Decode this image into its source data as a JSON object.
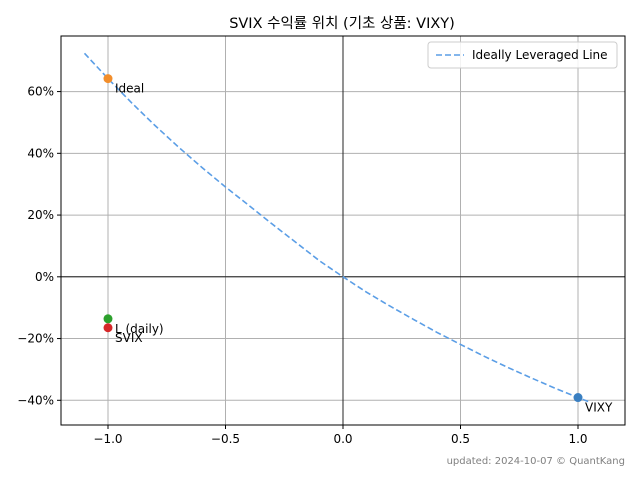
{
  "chart_data": {
    "type": "scatter",
    "title": "SVIX 수익률 위치 (기초 상품: VIXY)",
    "xlabel": "",
    "ylabel": "",
    "xlim": [
      -1.2,
      1.2
    ],
    "ylim": [
      -0.48,
      0.78
    ],
    "x_ticks": [
      -1.0,
      -0.5,
      0.0,
      0.5,
      1.0
    ],
    "x_tick_labels": [
      "−1.0",
      "−0.5",
      "0.0",
      "0.5",
      "1.0"
    ],
    "y_ticks": [
      -0.4,
      -0.2,
      0.0,
      0.2,
      0.4,
      0.6
    ],
    "y_tick_labels": [
      "−40%",
      "−20%",
      "0%",
      "20%",
      "40%",
      "60%"
    ],
    "grid": true,
    "legend_position": "top-right",
    "line_series": {
      "name": "Ideally Leveraged Line",
      "style": "dashed",
      "color": "#5b9ee6",
      "x": [
        -1.1,
        -1.0,
        -0.9,
        -0.8,
        -0.7,
        -0.6,
        -0.5,
        -0.4,
        -0.3,
        -0.2,
        -0.1,
        0.0,
        0.1,
        0.2,
        0.3,
        0.4,
        0.5,
        0.6,
        0.7,
        0.8,
        0.9,
        1.0,
        1.05
      ],
      "y": [
        0.724,
        0.642,
        0.564,
        0.49,
        0.42,
        0.354,
        0.291,
        0.231,
        0.17,
        0.111,
        0.052,
        0.0,
        -0.05,
        -0.095,
        -0.138,
        -0.18,
        -0.219,
        -0.257,
        -0.293,
        -0.327,
        -0.36,
        -0.391,
        -0.406
      ]
    },
    "points": [
      {
        "label": "VIXY",
        "x": 1.0,
        "y": -0.391,
        "color": "#3a7fc1"
      },
      {
        "label": "Ideal",
        "x": -1.0,
        "y": 0.642,
        "color": "#f28e2b"
      },
      {
        "label": "L (daily)",
        "x": -1.0,
        "y": -0.136,
        "color": "#2ca02c"
      },
      {
        "label": "SVIX",
        "x": -1.0,
        "y": -0.165,
        "color": "#d62728"
      }
    ],
    "footer": "updated: 2024-10-07 © QuantKang"
  }
}
